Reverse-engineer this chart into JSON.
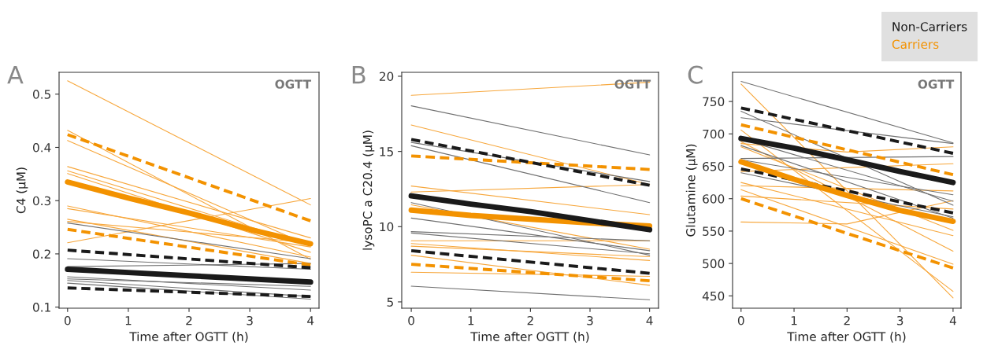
{
  "chart_data": [
    {
      "type": "line",
      "title": "A",
      "xlabel": "Time after OGTT (h)",
      "ylabel": "C4 (µM)",
      "annotations": [
        "OGTT"
      ],
      "legend": "top right",
      "grid": false,
      "xlim": [
        -0.14,
        4.14
      ],
      "xticks": [
        0,
        1,
        2,
        3,
        4
      ],
      "ylim": [
        0.098,
        0.541
      ],
      "yticks": [
        0.1,
        0.2,
        0.3,
        0.4,
        0.5
      ],
      "series": [
        {
          "color": "#f7a73c",
          "x": [
            0,
            4
          ],
          "values": [
            0.525,
            0.292
          ]
        },
        {
          "color": "#f7a73c",
          "x": [
            0,
            4
          ],
          "values": [
            0.432,
            0.19
          ]
        },
        {
          "color": "#f7a73c",
          "x": [
            0,
            4
          ],
          "values": [
            0.413,
            0.215
          ]
        },
        {
          "color": "#f7a73c",
          "x": [
            0,
            4
          ],
          "values": [
            0.364,
            0.23
          ]
        },
        {
          "color": "#f7a73c",
          "x": [
            0,
            4
          ],
          "values": [
            0.356,
            0.216
          ]
        },
        {
          "color": "#f7a73c",
          "x": [
            0,
            4
          ],
          "values": [
            0.351,
            0.203
          ]
        },
        {
          "color": "#f7a73c",
          "x": [
            0,
            4
          ],
          "values": [
            0.29,
            0.194
          ]
        },
        {
          "color": "#f7a73c",
          "x": [
            0,
            4
          ],
          "values": [
            0.285,
            0.213
          ]
        },
        {
          "color": "#f7a73c",
          "x": [
            0,
            4
          ],
          "values": [
            0.265,
            0.182
          ]
        },
        {
          "color": "#f7a73c",
          "x": [
            0,
            4
          ],
          "values": [
            0.261,
            0.221
          ]
        },
        {
          "color": "#f7a73c",
          "x": [
            0,
            4
          ],
          "values": [
            0.221,
            0.304
          ]
        },
        {
          "color": "#707070",
          "x": [
            0,
            4
          ],
          "values": [
            0.258,
            0.191
          ]
        },
        {
          "color": "#707070",
          "x": [
            0,
            4
          ],
          "values": [
            0.191,
            0.171
          ]
        },
        {
          "color": "#707070",
          "x": [
            0,
            4
          ],
          "values": [
            0.176,
            0.182
          ]
        },
        {
          "color": "#707070",
          "x": [
            0,
            4
          ],
          "values": [
            0.157,
            0.132
          ]
        },
        {
          "color": "#707070",
          "x": [
            0,
            4
          ],
          "values": [
            0.153,
            0.139
          ]
        },
        {
          "color": "#707070",
          "x": [
            0,
            4
          ],
          "values": [
            0.15,
            0.12
          ]
        },
        {
          "color": "#707070",
          "x": [
            0,
            4
          ],
          "values": [
            0.145,
            0.115
          ]
        },
        {
          "color": "#f39200",
          "line_style": "dashed",
          "x": [
            0,
            4
          ],
          "values": [
            0.424,
            0.262
          ]
        },
        {
          "color": "#f39200",
          "line_style": "dashed",
          "x": [
            0,
            4
          ],
          "values": [
            0.246,
            0.179
          ]
        },
        {
          "color": "#1a1a1a",
          "line_style": "dashed",
          "x": [
            0,
            4
          ],
          "values": [
            0.207,
            0.174
          ]
        },
        {
          "color": "#1a1a1a",
          "line_style": "dashed",
          "x": [
            0,
            4
          ],
          "values": [
            0.136,
            0.12
          ]
        },
        {
          "name": "Non-Carriers",
          "color": "#1a1a1a",
          "line_style": "solid",
          "x": [
            0,
            1,
            2,
            3,
            4
          ],
          "values": [
            0.171,
            0.165,
            0.159,
            0.153,
            0.147
          ]
        },
        {
          "name": "Carriers",
          "color": "#f39200",
          "line_style": "solid",
          "x": [
            0,
            1,
            2,
            3,
            4
          ],
          "values": [
            0.335,
            0.305,
            0.277,
            0.246,
            0.219
          ]
        }
      ]
    },
    {
      "type": "line",
      "title": "B",
      "xlabel": "Time after OGTT (h)",
      "ylabel": "lysoPC a C20.4 (µM)",
      "annotations": [
        "OGTT"
      ],
      "grid": false,
      "xlim": [
        -0.16,
        4.15
      ],
      "xticks": [
        0,
        1,
        2,
        3,
        4
      ],
      "ylim": [
        4.58,
        20.26
      ],
      "yticks": [
        5,
        10,
        15,
        20
      ],
      "series": [
        {
          "color": "#f7a73c",
          "x": [
            0,
            4
          ],
          "values": [
            18.73,
            19.6
          ]
        },
        {
          "color": "#f7a73c",
          "x": [
            0,
            4
          ],
          "values": [
            16.76,
            12.8
          ]
        },
        {
          "color": "#f7a73c",
          "x": [
            0,
            4
          ],
          "values": [
            12.7,
            10.8
          ]
        },
        {
          "color": "#f7a73c",
          "x": [
            0,
            4
          ],
          "values": [
            12.3,
            12.8
          ]
        },
        {
          "color": "#f7a73c",
          "x": [
            0,
            4
          ],
          "values": [
            11.45,
            8.5
          ]
        },
        {
          "color": "#f7a73c",
          "x": [
            0,
            4
          ],
          "values": [
            9.06,
            9.06
          ]
        },
        {
          "color": "#f7a73c",
          "x": [
            0,
            4
          ],
          "values": [
            8.88,
            7.75
          ]
        },
        {
          "color": "#f7a73c",
          "x": [
            0,
            4
          ],
          "values": [
            8.7,
            8.0
          ]
        },
        {
          "color": "#f7a73c",
          "x": [
            0,
            4
          ],
          "values": [
            8.1,
            6.1
          ]
        },
        {
          "color": "#f7a73c",
          "x": [
            0,
            4
          ],
          "values": [
            6.97,
            6.7
          ]
        },
        {
          "color": "#707070",
          "x": [
            0,
            4
          ],
          "values": [
            18.03,
            14.77
          ]
        },
        {
          "color": "#707070",
          "x": [
            0,
            4
          ],
          "values": [
            15.6,
            13.0
          ]
        },
        {
          "color": "#707070",
          "x": [
            0,
            4
          ],
          "values": [
            15.38,
            11.6
          ]
        },
        {
          "color": "#707070",
          "x": [
            0,
            4
          ],
          "values": [
            11.6,
            8.1
          ]
        },
        {
          "color": "#707070",
          "x": [
            0,
            4
          ],
          "values": [
            10.57,
            8.4
          ]
        },
        {
          "color": "#707070",
          "x": [
            0,
            4
          ],
          "values": [
            9.67,
            9.06
          ]
        },
        {
          "color": "#707070",
          "x": [
            0,
            4
          ],
          "values": [
            9.58,
            8.2
          ]
        },
        {
          "color": "#707070",
          "x": [
            0,
            4
          ],
          "values": [
            6.04,
            5.14
          ]
        },
        {
          "color": "#f39200",
          "line_style": "dashed",
          "x": [
            0,
            4
          ],
          "values": [
            14.7,
            13.8
          ]
        },
        {
          "color": "#f39200",
          "line_style": "dashed",
          "x": [
            0,
            4
          ],
          "values": [
            7.5,
            6.4
          ]
        },
        {
          "color": "#1a1a1a",
          "line_style": "dashed",
          "x": [
            0,
            4
          ],
          "values": [
            15.8,
            12.75
          ]
        },
        {
          "color": "#1a1a1a",
          "line_style": "dashed",
          "x": [
            0,
            4
          ],
          "values": [
            8.4,
            6.9
          ]
        },
        {
          "color": "#f39200",
          "line_style": "solid",
          "x": [
            0,
            1,
            2,
            3,
            4
          ],
          "values": [
            11.1,
            10.75,
            10.5,
            10.25,
            10.05
          ]
        },
        {
          "color": "#1a1a1a",
          "line_style": "solid",
          "x": [
            0,
            1,
            2,
            3,
            4
          ],
          "values": [
            12.05,
            11.5,
            11.0,
            10.4,
            9.8
          ]
        }
      ]
    },
    {
      "type": "line",
      "title": "C",
      "xlabel": "Time after OGTT (h)",
      "ylabel": "Glutamine (µM)",
      "annotations": [
        "OGTT"
      ],
      "grid": false,
      "xlim": [
        -0.16,
        4.15
      ],
      "xticks": [
        0,
        1,
        2,
        3,
        4
      ],
      "ylim": [
        431,
        795
      ],
      "yticks": [
        450,
        500,
        550,
        600,
        650,
        700,
        750
      ],
      "series": [
        {
          "color": "#f7a73c",
          "x": [
            0,
            4
          ],
          "values": [
            777,
            447
          ]
        },
        {
          "color": "#f7a73c",
          "x": [
            0,
            4
          ],
          "values": [
            706,
            457
          ]
        },
        {
          "color": "#f7a73c",
          "x": [
            0,
            4
          ],
          "values": [
            688,
            519
          ]
        },
        {
          "color": "#f7a73c",
          "x": [
            0,
            2,
            4
          ],
          "values": [
            685,
            672,
            680
          ]
        },
        {
          "color": "#f7a73c",
          "x": [
            0,
            4
          ],
          "values": [
            680,
            551
          ]
        },
        {
          "color": "#f7a73c",
          "x": [
            0,
            4
          ],
          "values": [
            642,
            654
          ]
        },
        {
          "color": "#f7a73c",
          "x": [
            0,
            4
          ],
          "values": [
            625,
            543
          ]
        },
        {
          "color": "#f7a73c",
          "x": [
            0,
            4
          ],
          "values": [
            620,
            612
          ]
        },
        {
          "color": "#f7a73c",
          "x": [
            0,
            4
          ],
          "values": [
            614,
            499
          ]
        },
        {
          "color": "#f7a73c",
          "x": [
            0,
            2,
            4
          ],
          "values": [
            564,
            561,
            597
          ]
        },
        {
          "color": "#f7a73c",
          "x": [
            0,
            4
          ],
          "values": [
            604,
            584
          ]
        },
        {
          "color": "#707070",
          "x": [
            0,
            4
          ],
          "values": [
            781,
            686
          ]
        },
        {
          "color": "#707070",
          "x": [
            0,
            4
          ],
          "values": [
            725,
            685
          ]
        },
        {
          "color": "#707070",
          "x": [
            0,
            4
          ],
          "values": [
            735,
            590
          ]
        },
        {
          "color": "#707070",
          "x": [
            0,
            4
          ],
          "values": [
            692,
            596
          ]
        },
        {
          "color": "#707070",
          "x": [
            0,
            4
          ],
          "values": [
            682,
            570
          ]
        },
        {
          "color": "#707070",
          "x": [
            0,
            4
          ],
          "values": [
            662,
            665
          ]
        },
        {
          "color": "#707070",
          "x": [
            0,
            4
          ],
          "values": [
            660,
            606
          ]
        },
        {
          "color": "#707070",
          "x": [
            0,
            4
          ],
          "values": [
            640,
            572
          ]
        },
        {
          "color": "#f39200",
          "line_style": "dashed",
          "x": [
            0,
            4
          ],
          "values": [
            714,
            637
          ]
        },
        {
          "color": "#f39200",
          "line_style": "dashed",
          "x": [
            0,
            4
          ],
          "values": [
            600,
            493
          ]
        },
        {
          "color": "#1a1a1a",
          "line_style": "dashed",
          "x": [
            0,
            4
          ],
          "values": [
            740,
            670
          ]
        },
        {
          "color": "#1a1a1a",
          "line_style": "dashed",
          "x": [
            0,
            4
          ],
          "values": [
            646,
            578
          ]
        },
        {
          "color": "#f39200",
          "line_style": "solid",
          "x": [
            0,
            1,
            2,
            3,
            4
          ],
          "values": [
            657,
            630,
            605,
            582,
            565
          ]
        },
        {
          "color": "#1a1a1a",
          "line_style": "solid",
          "x": [
            0,
            1,
            2,
            3,
            4
          ],
          "values": [
            693,
            678,
            660,
            642,
            625
          ]
        }
      ]
    }
  ]
}
